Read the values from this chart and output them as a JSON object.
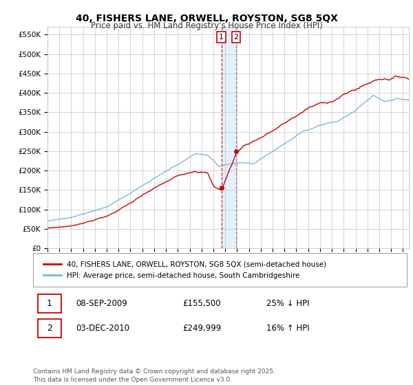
{
  "title": "40, FISHERS LANE, ORWELL, ROYSTON, SG8 5QX",
  "subtitle": "Price paid vs. HM Land Registry's House Price Index (HPI)",
  "ylabel_ticks": [
    "£0",
    "£50K",
    "£100K",
    "£150K",
    "£200K",
    "£250K",
    "£300K",
    "£350K",
    "£400K",
    "£450K",
    "£500K",
    "£550K"
  ],
  "ytick_vals": [
    0,
    50000,
    100000,
    150000,
    200000,
    250000,
    300000,
    350000,
    400000,
    450000,
    500000,
    550000
  ],
  "ylim": [
    0,
    570000
  ],
  "xlim_start": 1995.0,
  "xlim_end": 2025.5,
  "hpi_color": "#7ab8d9",
  "price_color": "#cc0000",
  "transaction1_date": 2009.68,
  "transaction2_date": 2010.92,
  "transaction1_price": 155500,
  "transaction2_price": 249999,
  "legend_line1": "40, FISHERS LANE, ORWELL, ROYSTON, SG8 5QX (semi-detached house)",
  "legend_line2": "HPI: Average price, semi-detached house, South Cambridgeshire",
  "table_row1": [
    "1",
    "08-SEP-2009",
    "£155,500",
    "25% ↓ HPI"
  ],
  "table_row2": [
    "2",
    "03-DEC-2010",
    "£249,999",
    "16% ↑ HPI"
  ],
  "footer": "Contains HM Land Registry data © Crown copyright and database right 2025.\nThis data is licensed under the Open Government Licence v3.0.",
  "background_color": "#ffffff",
  "grid_color": "#cccccc",
  "shade_color": "#ddeeff"
}
